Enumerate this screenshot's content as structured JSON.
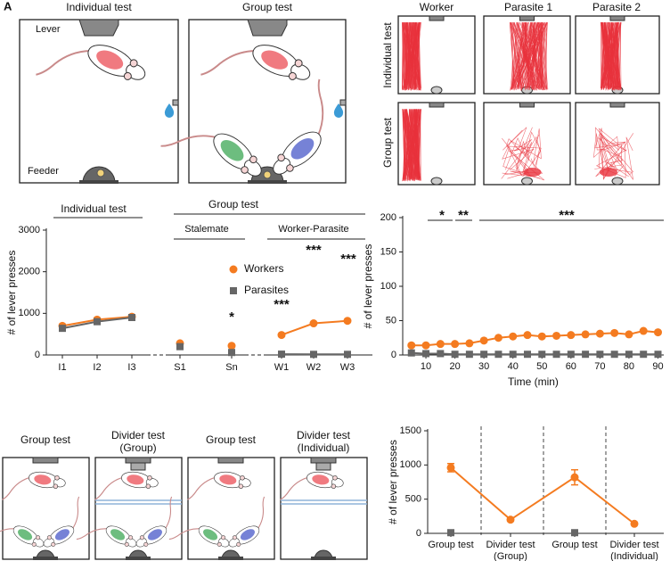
{
  "figure": {
    "panel_label": "A",
    "top_left": {
      "titles": [
        "Individual test",
        "Group test"
      ],
      "lever": "Lever",
      "feeder": "Feeder"
    },
    "top_right": {
      "columns": [
        "Worker",
        "Parasite 1",
        "Parasite 2"
      ],
      "rows": [
        "Individual test",
        "Group test"
      ]
    },
    "bottom_left": {
      "titles": [
        [
          "Group test"
        ],
        [
          "Divider test",
          "(Group)"
        ],
        [
          "Group test"
        ],
        [
          "Divider test",
          "(Individual)"
        ]
      ]
    }
  },
  "chart_data": [
    {
      "type": "line",
      "headers": [
        "Individual test",
        "Group test",
        "Stalemate",
        "Worker-Parasite"
      ],
      "categories": [
        "I1",
        "I2",
        "I3",
        "S1",
        "Sn",
        "W1",
        "W2",
        "W3"
      ],
      "ylabel": "# of lever presses",
      "ylim": [
        0,
        3000
      ],
      "yticks": [
        0,
        1000,
        2000,
        3000
      ],
      "series": [
        {
          "name": "Workers",
          "color": "#f47b20",
          "marker": "circle",
          "values": [
            700,
            850,
            920,
            280,
            220,
            480,
            760,
            820
          ]
        },
        {
          "name": "Parasites",
          "color": "#666666",
          "marker": "square",
          "values": [
            640,
            800,
            900,
            200,
            60,
            20,
            15,
            15
          ]
        }
      ],
      "annotations": [
        "*",
        "***",
        "***",
        "***"
      ]
    },
    {
      "type": "line",
      "x": [
        5,
        10,
        15,
        20,
        25,
        30,
        35,
        40,
        45,
        50,
        55,
        60,
        65,
        70,
        75,
        80,
        85,
        90
      ],
      "xlim": [
        2,
        92
      ],
      "xticks": [
        10,
        20,
        30,
        40,
        50,
        60,
        70,
        80,
        90
      ],
      "xlabel": "Time (min)",
      "ylabel": "# of lever presses",
      "ylim": [
        0,
        200
      ],
      "yticks": [
        0,
        50,
        100,
        150,
        200
      ],
      "series": [
        {
          "name": "Workers",
          "color": "#f47b20",
          "marker": "circle",
          "values": [
            14,
            14,
            16,
            16,
            17,
            21,
            25,
            27,
            29,
            27,
            28,
            29,
            30,
            31,
            32,
            30,
            35,
            33
          ]
        },
        {
          "name": "Parasites",
          "color": "#666666",
          "marker": "square",
          "values": [
            3,
            2,
            2,
            1,
            1,
            1,
            1,
            1,
            1,
            1,
            1,
            1,
            1,
            1,
            1,
            1,
            1,
            1
          ]
        }
      ],
      "annotations": [
        "*",
        "**",
        "***"
      ]
    },
    {
      "type": "line",
      "categories": [
        [
          "Group test"
        ],
        [
          "Divider test",
          "(Group)"
        ],
        [
          "Group test"
        ],
        [
          "Divider test",
          "(Individual)"
        ]
      ],
      "ylabel": "# of lever presses",
      "ylim": [
        0,
        1500
      ],
      "yticks": [
        0,
        500,
        1000,
        1500
      ],
      "series": [
        {
          "name": "Workers",
          "color": "#f47b20",
          "marker": "circle",
          "values": [
            960,
            200,
            820,
            140
          ],
          "errors": [
            60,
            20,
            110,
            15
          ]
        },
        {
          "name": "Parasites",
          "color": "#666666",
          "marker": "square",
          "values": [
            10,
            null,
            10,
            null
          ]
        }
      ]
    }
  ]
}
